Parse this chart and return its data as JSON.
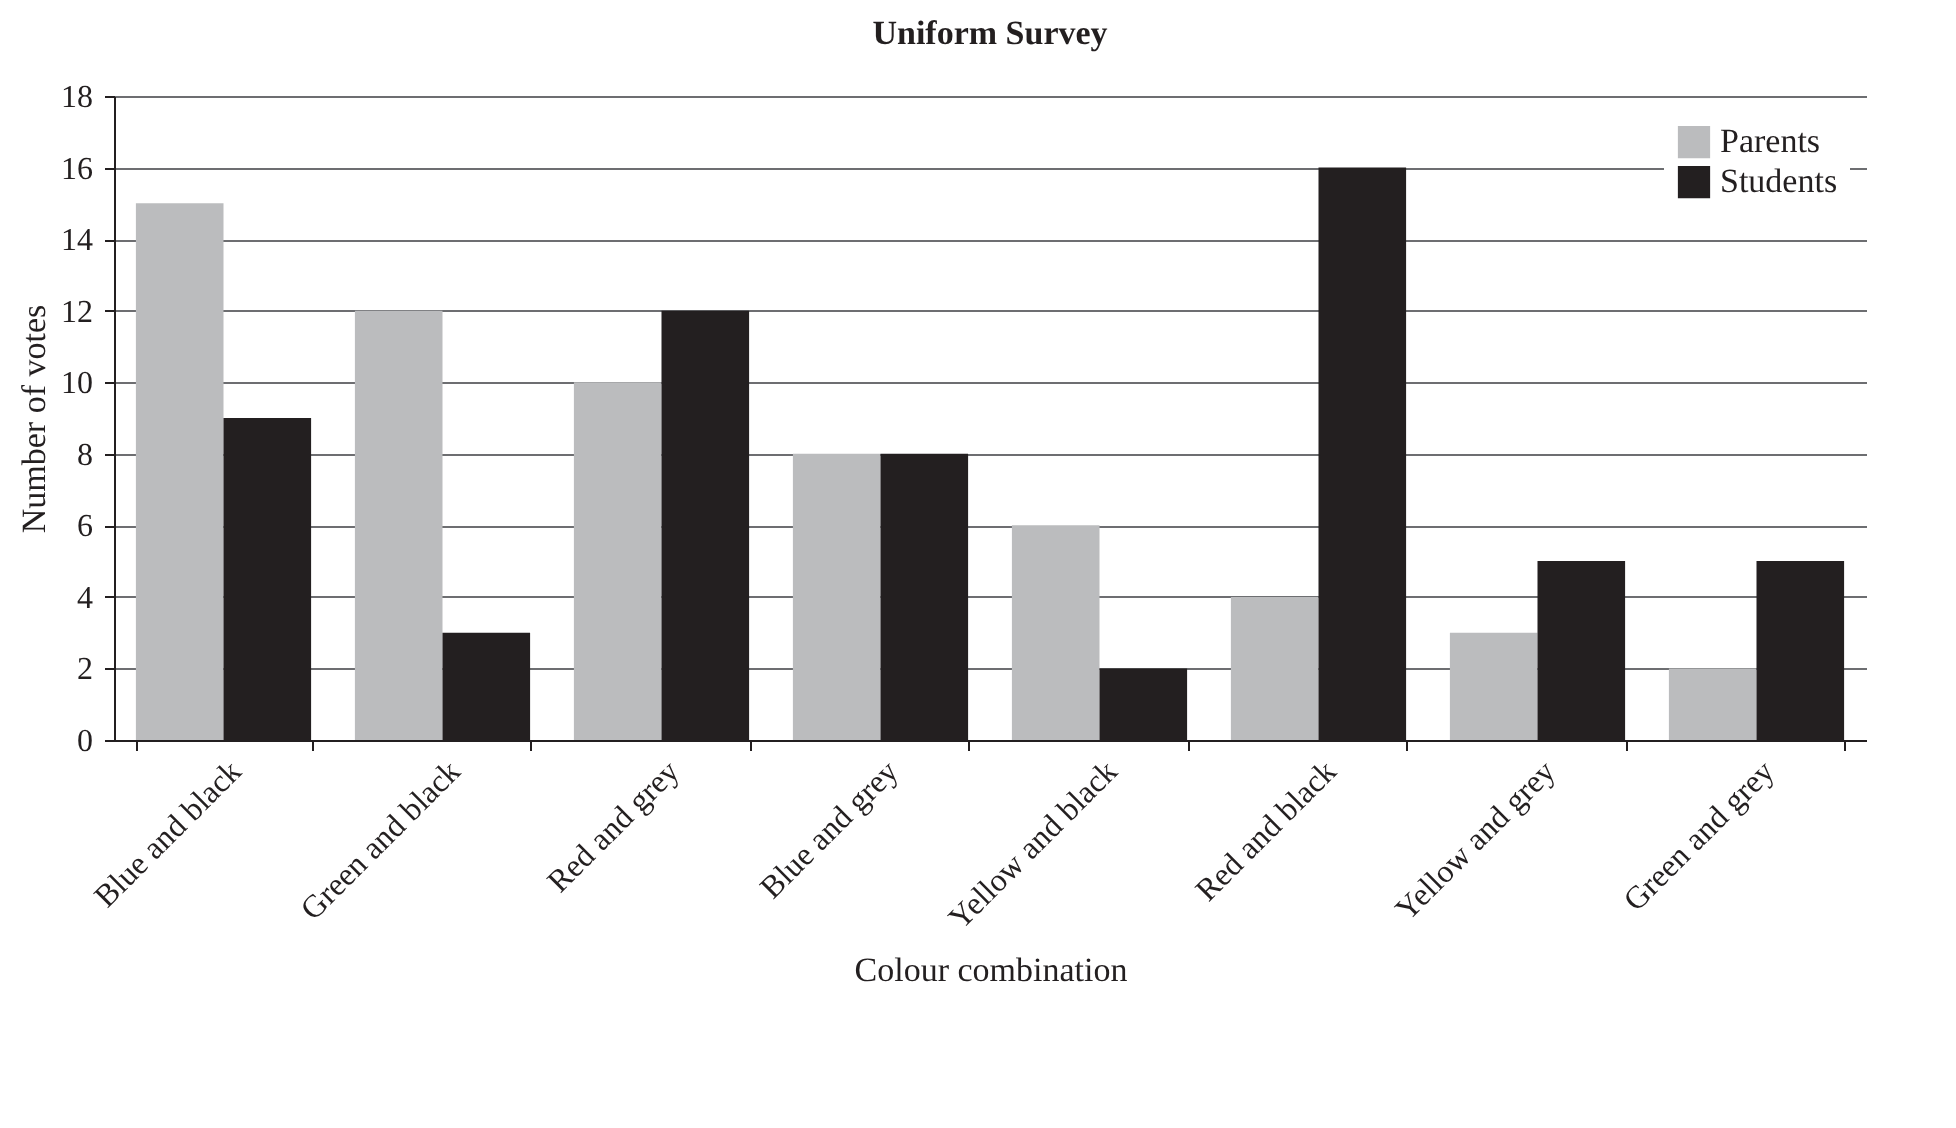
{
  "chart_data": {
    "type": "bar",
    "title": "Uniform Survey",
    "xlabel": "Colour combination",
    "ylabel": "Number of votes",
    "categories": [
      "Blue and black",
      "Green and black",
      "Red and grey",
      "Blue and grey",
      "Yellow and black",
      "Red and black",
      "Yellow and grey",
      "Green and grey"
    ],
    "series": [
      {
        "name": "Parents",
        "color": "#bbbcbe",
        "values": [
          15,
          12,
          10,
          8,
          6,
          4,
          3,
          2
        ]
      },
      {
        "name": "Students",
        "color": "#231f20",
        "values": [
          9,
          3,
          12,
          8,
          2,
          16,
          5,
          5
        ]
      }
    ],
    "ylim": [
      0,
      18
    ],
    "yticks": [
      0,
      2,
      4,
      6,
      8,
      10,
      12,
      14,
      16,
      18
    ],
    "grid": "y",
    "legend": "top right"
  }
}
